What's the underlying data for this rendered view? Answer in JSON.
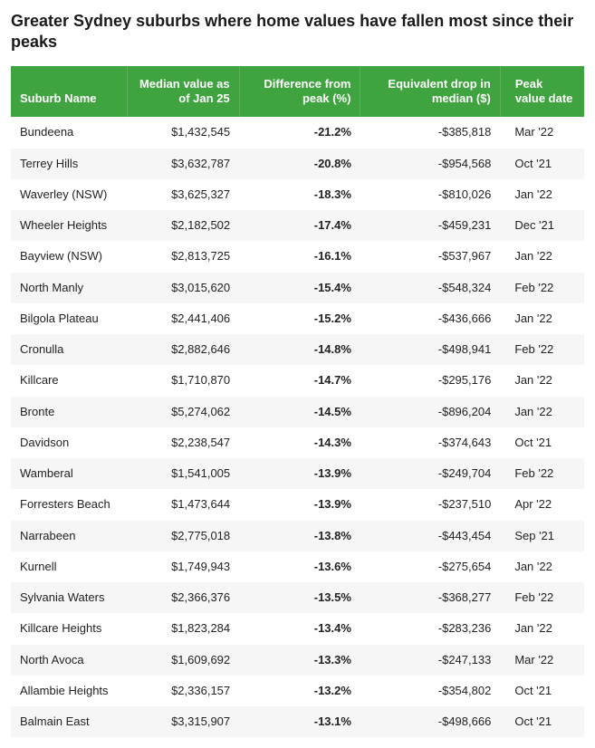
{
  "title": "Greater Sydney suburbs where home values have fallen most since their peaks",
  "colors": {
    "header_bg": "#3fa33f",
    "header_text": "#ffffff",
    "row_alt_bg": "#f5f6f5",
    "row_bg": "#ffffff",
    "text": "#222222"
  },
  "table": {
    "columns": [
      {
        "key": "name",
        "label": "Suburb Name",
        "align": "left"
      },
      {
        "key": "median",
        "label": "Median value as of Jan 25",
        "align": "right"
      },
      {
        "key": "diff",
        "label": "Difference from peak (%)",
        "align": "right"
      },
      {
        "key": "drop",
        "label": "Equivalent drop in median ($)",
        "align": "right"
      },
      {
        "key": "date",
        "label": "Peak value date",
        "align": "left"
      }
    ],
    "rows": [
      {
        "name": "Bundeena",
        "median": "$1,432,545",
        "diff": "-21.2%",
        "drop": "-$385,818",
        "date": "Mar '22"
      },
      {
        "name": "Terrey Hills",
        "median": "$3,632,787",
        "diff": "-20.8%",
        "drop": "-$954,568",
        "date": "Oct '21"
      },
      {
        "name": "Waverley (NSW)",
        "median": "$3,625,327",
        "diff": "-18.3%",
        "drop": "-$810,026",
        "date": "Jan '22"
      },
      {
        "name": "Wheeler Heights",
        "median": "$2,182,502",
        "diff": "-17.4%",
        "drop": "-$459,231",
        "date": "Dec '21"
      },
      {
        "name": "Bayview (NSW)",
        "median": "$2,813,725",
        "diff": "-16.1%",
        "drop": "-$537,967",
        "date": "Jan '22"
      },
      {
        "name": "North Manly",
        "median": "$3,015,620",
        "diff": "-15.4%",
        "drop": "-$548,324",
        "date": "Feb '22"
      },
      {
        "name": "Bilgola Plateau",
        "median": "$2,441,406",
        "diff": "-15.2%",
        "drop": "-$436,666",
        "date": "Jan '22"
      },
      {
        "name": "Cronulla",
        "median": "$2,882,646",
        "diff": "-14.8%",
        "drop": "-$498,941",
        "date": "Feb '22"
      },
      {
        "name": "Killcare",
        "median": "$1,710,870",
        "diff": "-14.7%",
        "drop": "-$295,176",
        "date": "Jan '22"
      },
      {
        "name": "Bronte",
        "median": "$5,274,062",
        "diff": "-14.5%",
        "drop": "-$896,204",
        "date": "Jan '22"
      },
      {
        "name": "Davidson",
        "median": "$2,238,547",
        "diff": "-14.3%",
        "drop": "-$374,643",
        "date": "Oct '21"
      },
      {
        "name": "Wamberal",
        "median": "$1,541,005",
        "diff": "-13.9%",
        "drop": "-$249,704",
        "date": "Feb '22"
      },
      {
        "name": "Forresters Beach",
        "median": "$1,473,644",
        "diff": "-13.9%",
        "drop": "-$237,510",
        "date": "Apr '22"
      },
      {
        "name": "Narrabeen",
        "median": "$2,775,018",
        "diff": "-13.8%",
        "drop": "-$443,454",
        "date": "Sep '21"
      },
      {
        "name": "Kurnell",
        "median": "$1,749,943",
        "diff": "-13.6%",
        "drop": "-$275,654",
        "date": "Jan '22"
      },
      {
        "name": "Sylvania Waters",
        "median": "$2,366,376",
        "diff": "-13.5%",
        "drop": "-$368,277",
        "date": "Feb '22"
      },
      {
        "name": "Killcare Heights",
        "median": "$1,823,284",
        "diff": "-13.4%",
        "drop": "-$283,236",
        "date": "Jan '22"
      },
      {
        "name": "North Avoca",
        "median": "$1,609,692",
        "diff": "-13.3%",
        "drop": "-$247,133",
        "date": "Mar '22"
      },
      {
        "name": "Allambie Heights",
        "median": "$2,336,157",
        "diff": "-13.2%",
        "drop": "-$354,802",
        "date": "Oct '21"
      },
      {
        "name": "Balmain East",
        "median": "$3,315,907",
        "diff": "-13.1%",
        "drop": "-$498,666",
        "date": "Oct '21"
      }
    ]
  }
}
